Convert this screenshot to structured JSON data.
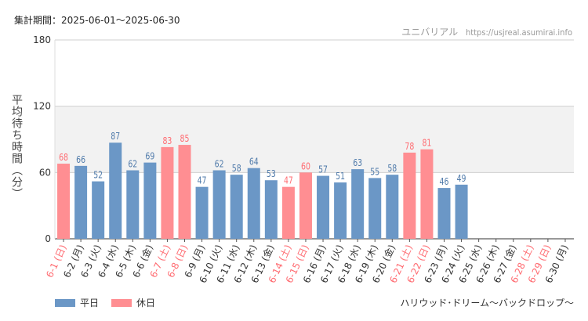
{
  "header": {
    "period": "集計期間：2025-06-01～2025-06-30",
    "site_name": "ユニバリアル",
    "site_url": "https://usjreal.asumirai.info"
  },
  "footer": {
    "attraction": "ハリウッド･ドリーム～バックドロップ～"
  },
  "colors": {
    "weekday": "#6b97c6",
    "holiday": "#ff8e92",
    "weekday_label": "#4f7aaa",
    "holiday_label": "#ff6b71",
    "band": "#f2f2f2"
  },
  "chart_data": {
    "type": "bar",
    "ylabel": "平均待ち時間（分）",
    "ylim": [
      0,
      180
    ],
    "yticks": [
      0,
      60,
      120,
      180
    ],
    "band": [
      60,
      120
    ],
    "legend": [
      {
        "name": "平日",
        "kind": "weekday"
      },
      {
        "name": "休日",
        "kind": "holiday"
      }
    ],
    "categories": [
      "6-1 (日)",
      "6-2 (月)",
      "6-3 (火)",
      "6-4 (水)",
      "6-5 (木)",
      "6-6 (金)",
      "6-7 (土)",
      "6-8 (日)",
      "6-9 (月)",
      "6-10 (火)",
      "6-11 (水)",
      "6-12 (木)",
      "6-13 (金)",
      "6-14 (土)",
      "6-15 (日)",
      "6-16 (月)",
      "6-17 (火)",
      "6-18 (水)",
      "6-19 (木)",
      "6-20 (金)",
      "6-21 (土)",
      "6-22 (日)",
      "6-23 (月)",
      "6-24 (火)",
      "6-25 (水)",
      "6-26 (木)",
      "6-27 (金)",
      "6-28 (土)",
      "6-29 (日)",
      "6-30 (月)"
    ],
    "values": [
      68,
      66,
      52,
      87,
      62,
      69,
      83,
      85,
      47,
      62,
      58,
      64,
      53,
      47,
      60,
      57,
      51,
      63,
      55,
      58,
      78,
      81,
      46,
      49,
      null,
      null,
      null,
      null,
      null,
      null
    ],
    "kinds": [
      "holiday",
      "weekday",
      "weekday",
      "weekday",
      "weekday",
      "weekday",
      "holiday",
      "holiday",
      "weekday",
      "weekday",
      "weekday",
      "weekday",
      "weekday",
      "holiday",
      "holiday",
      "weekday",
      "weekday",
      "weekday",
      "weekday",
      "weekday",
      "holiday",
      "holiday",
      "weekday",
      "weekday",
      "weekday",
      "weekday",
      "weekday",
      "holiday",
      "holiday",
      "weekday"
    ]
  }
}
